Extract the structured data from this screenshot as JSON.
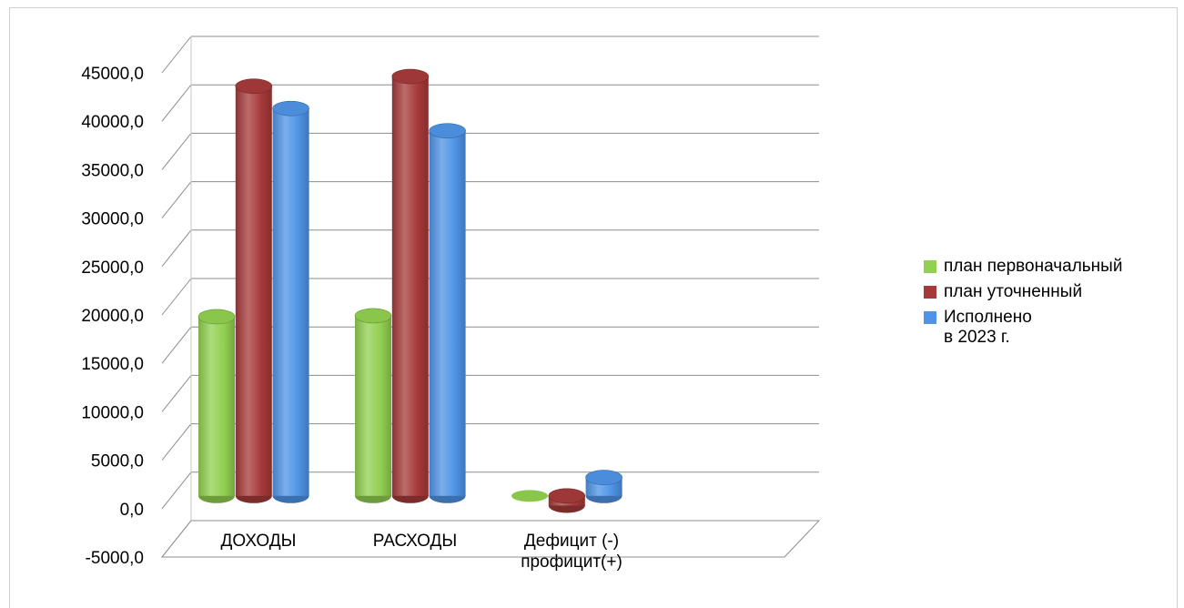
{
  "chart_data": {
    "type": "bar",
    "categories": [
      "ДОХОДЫ",
      "РАСХОДЫ",
      "Дефицит (-)\nпрофицит(+)"
    ],
    "series": [
      {
        "name": "план первоначальный",
        "color": "#92d050",
        "values": [
          18500,
          18600,
          0
        ]
      },
      {
        "name": "план уточненный",
        "color": "#a63a3a",
        "values": [
          42300,
          43300,
          -1000
        ]
      },
      {
        "name": "Исполнено\nв 2023 г.",
        "color": "#4f94e6",
        "values": [
          40000,
          37700,
          1900
        ]
      }
    ],
    "ylim": [
      -5000,
      45000
    ],
    "yticks": [
      "45000,0",
      "40000,0",
      "35000,0",
      "30000,0",
      "25000,0",
      "20000,0",
      "15000,0",
      "10000,0",
      "5000,0",
      "0,0",
      "-5000,0"
    ],
    "grid": true,
    "legend_position": "right",
    "style": "3d-cylinder"
  }
}
